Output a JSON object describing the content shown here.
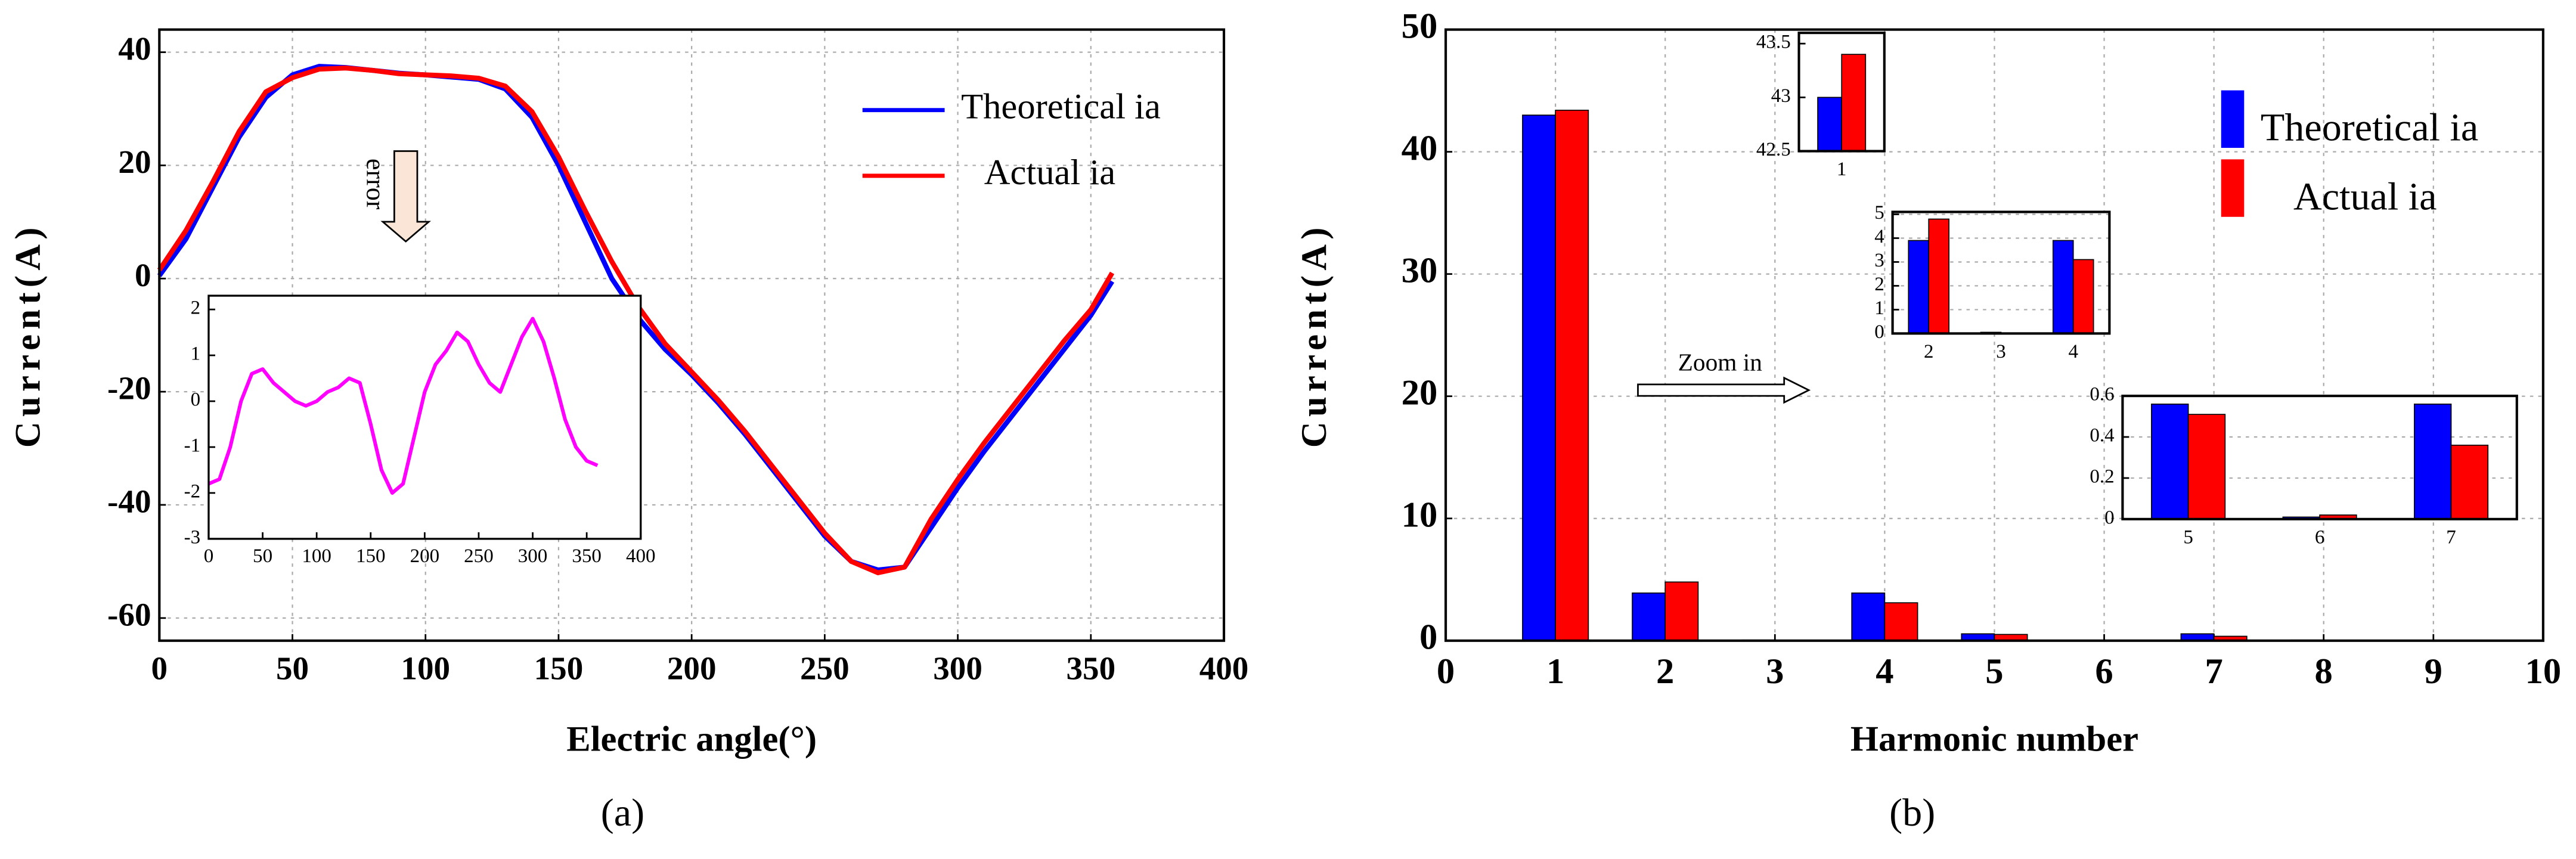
{
  "chart_data": [
    {
      "type": "line",
      "caption": "(a)",
      "xlabel": "Electric angle(°)",
      "ylabel": "Current(A)",
      "annotation": "error",
      "x": [
        0,
        10,
        20,
        30,
        40,
        50,
        60,
        70,
        80,
        90,
        100,
        110,
        120,
        130,
        140,
        150,
        160,
        170,
        180,
        190,
        200,
        210,
        220,
        230,
        240,
        250,
        260,
        270,
        280,
        290,
        300,
        310,
        320,
        330,
        340,
        350,
        358
      ],
      "series": [
        {
          "name": "Theoretical ia",
          "color": "#0000ff",
          "values": [
            0.5,
            7,
            16,
            25,
            32,
            36,
            37.5,
            37.3,
            36.8,
            36.3,
            36,
            35.6,
            35.2,
            33.5,
            28.5,
            20,
            10,
            0,
            -7,
            -12.5,
            -17,
            -22,
            -27.5,
            -33.5,
            -39.5,
            -45.5,
            -50,
            -51.5,
            -51,
            -44,
            -37,
            -30.5,
            -24.5,
            -18.5,
            -12.5,
            -6.5,
            -0.5
          ]
        },
        {
          "name": "Actual ia",
          "color": "#ff0000",
          "values": [
            1.5,
            8.5,
            17,
            26,
            33,
            35.5,
            37,
            37.2,
            36.8,
            36.2,
            36,
            35.8,
            35.4,
            34,
            29.5,
            21.5,
            12,
            3,
            -5,
            -11.5,
            -16.5,
            -21.5,
            -27,
            -33,
            -39,
            -45,
            -50,
            -52,
            -51,
            -42.5,
            -35.5,
            -29,
            -23,
            -17,
            -11,
            -5.5,
            1
          ]
        }
      ],
      "xlim": [
        0,
        400
      ],
      "ylim": [
        -64,
        44
      ],
      "xticks": [
        0,
        50,
        100,
        150,
        200,
        250,
        300,
        350,
        400
      ],
      "yticks": [
        -60,
        -40,
        -20,
        0,
        20,
        40
      ],
      "grid": true
    },
    {
      "type": "line",
      "x": [
        0,
        10,
        20,
        30,
        40,
        50,
        60,
        70,
        80,
        90,
        100,
        110,
        120,
        130,
        140,
        150,
        160,
        170,
        180,
        190,
        200,
        210,
        220,
        230,
        240,
        250,
        260,
        270,
        280,
        290,
        300,
        310,
        320,
        330,
        340,
        350,
        360
      ],
      "series": [
        {
          "color": "#ff00ff",
          "values": [
            -1.8,
            -1.7,
            -1,
            0,
            0.6,
            0.7,
            0.4,
            0.2,
            0,
            -0.1,
            0,
            0.2,
            0.3,
            0.5,
            0.4,
            -0.5,
            -1.5,
            -2,
            -1.8,
            -0.8,
            0.2,
            0.8,
            1.1,
            1.5,
            1.3,
            0.8,
            0.4,
            0.2,
            0.8,
            1.4,
            1.8,
            1.3,
            0.5,
            -0.4,
            -1,
            -1.3,
            -1.4
          ]
        }
      ],
      "xlim": [
        0,
        400
      ],
      "ylim": [
        -3,
        2.3
      ],
      "xticks": [
        0,
        50,
        100,
        150,
        200,
        250,
        300,
        350,
        400
      ],
      "yticks": [
        -3,
        -2,
        -1,
        0,
        1,
        2
      ],
      "grid": false
    },
    {
      "type": "bar",
      "caption": "(b)",
      "xlabel": "Harmonic number",
      "ylabel": "Current(A)",
      "annotation": "Zoom in",
      "x": [
        1,
        2,
        3,
        4,
        5,
        6,
        7,
        8
      ],
      "series": [
        {
          "name": "Theoretical ia",
          "color": "#0000ff",
          "values": [
            43,
            3.9,
            0.05,
            3.9,
            0.56,
            0.01,
            0.56,
            0.05
          ]
        },
        {
          "name": "Actual ia",
          "color": "#ff0000",
          "values": [
            43.4,
            4.8,
            0.02,
            3.1,
            0.51,
            0.02,
            0.36,
            0.02
          ]
        }
      ],
      "xlim": [
        0,
        10
      ],
      "ylim": [
        0,
        50
      ],
      "xticks": [
        0,
        1,
        2,
        3,
        4,
        5,
        6,
        7,
        8,
        9,
        10
      ],
      "yticks": [
        0,
        10,
        20,
        30,
        40,
        50
      ],
      "grid": true
    },
    {
      "type": "bar",
      "categories": [
        1
      ],
      "series": [
        {
          "color": "#0000ff",
          "values": [
            43
          ]
        },
        {
          "color": "#ff0000",
          "values": [
            43.4
          ]
        }
      ],
      "ylim": [
        42.5,
        43.6
      ],
      "yticks": [
        42.5,
        43,
        43.5
      ],
      "grid": false
    },
    {
      "type": "bar",
      "categories": [
        2,
        3,
        4
      ],
      "series": [
        {
          "color": "#0000ff",
          "values": [
            3.9,
            0.05,
            3.9
          ]
        },
        {
          "color": "#ff0000",
          "values": [
            4.8,
            0.02,
            3.1
          ]
        }
      ],
      "ylim": [
        0,
        5.1
      ],
      "yticks": [
        0,
        1,
        2,
        3,
        4,
        5
      ],
      "grid": true
    },
    {
      "type": "bar",
      "categories": [
        5,
        6,
        7
      ],
      "series": [
        {
          "color": "#0000ff",
          "values": [
            0.56,
            0.01,
            0.56
          ]
        },
        {
          "color": "#ff0000",
          "values": [
            0.51,
            0.02,
            0.36
          ]
        }
      ],
      "ylim": [
        0,
        0.6
      ],
      "yticks": [
        0,
        0.2,
        0.4,
        0.6
      ],
      "grid": true
    }
  ]
}
